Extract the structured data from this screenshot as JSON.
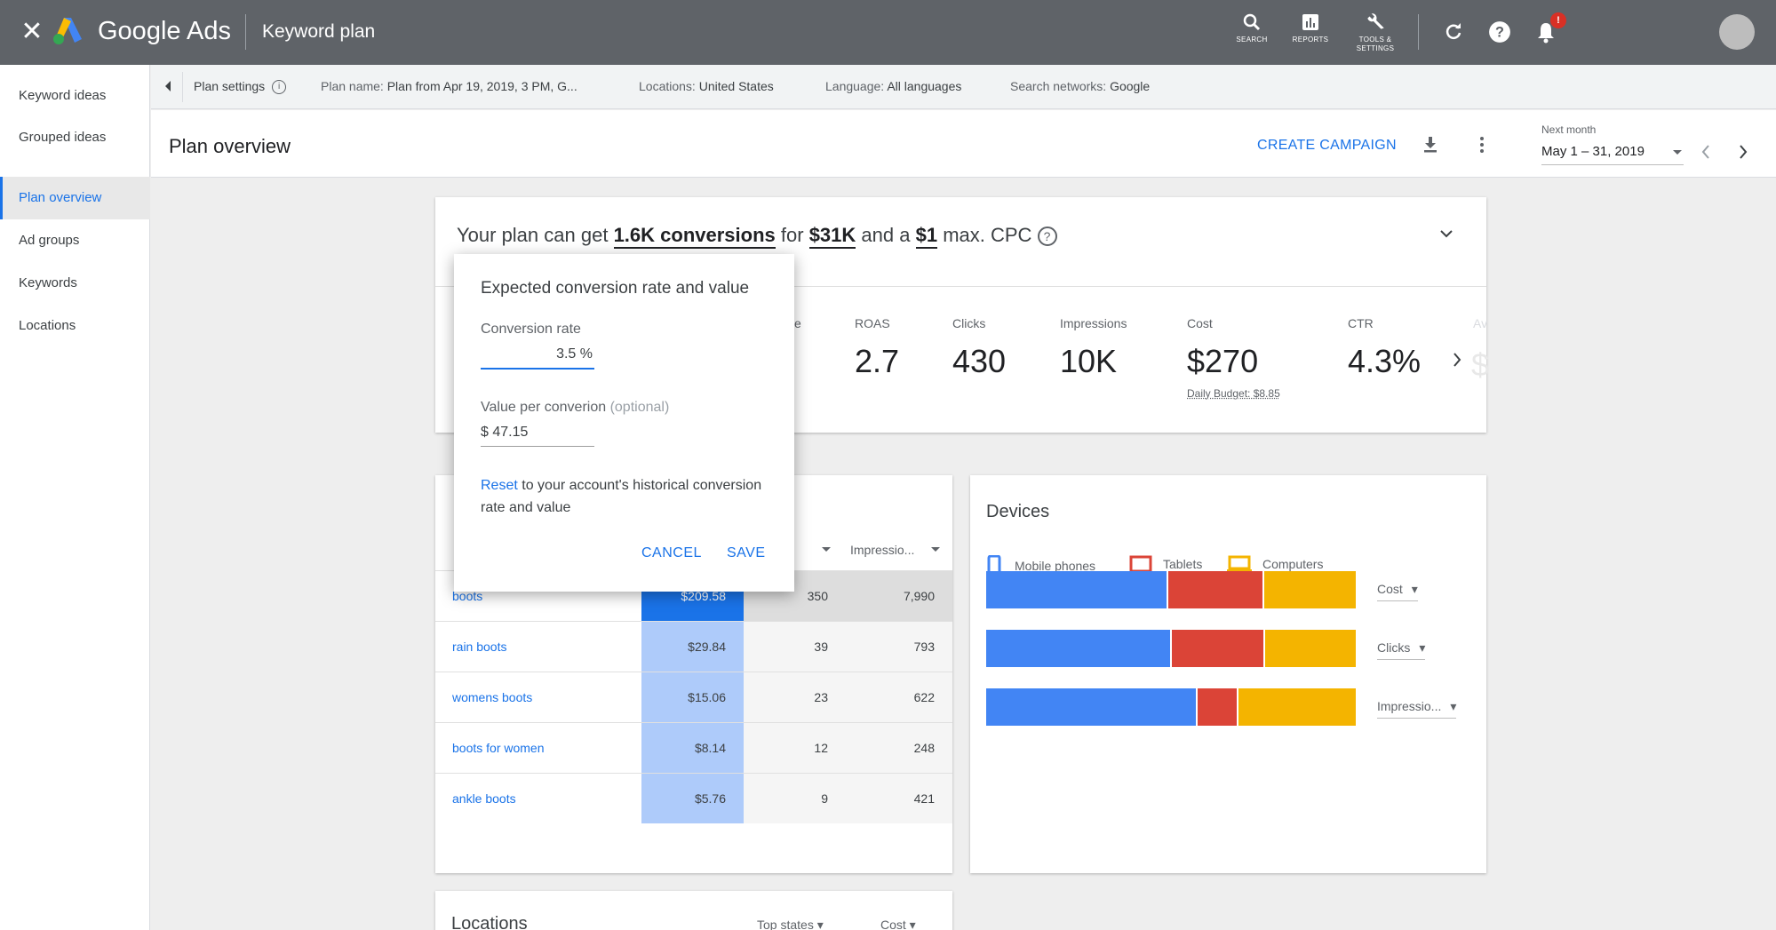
{
  "topbar": {
    "close_glyph": "✕",
    "brand": "Google Ads",
    "page_title": "Keyword plan",
    "tools": [
      {
        "label": "SEARCH",
        "icon": "search-icon"
      },
      {
        "label": "REPORTS",
        "icon": "reports-icon"
      },
      {
        "label": "TOOLS & SETTINGS",
        "icon": "wrench-icon"
      }
    ],
    "notification_badge": "!",
    "colors": {
      "bar": "#5f6368",
      "badge": "#d93025"
    }
  },
  "sidebar": {
    "items": [
      {
        "label": "Keyword ideas"
      },
      {
        "label": "Grouped ideas"
      },
      {
        "label": "Plan overview"
      },
      {
        "label": "Ad groups"
      },
      {
        "label": "Keywords"
      },
      {
        "label": "Locations"
      }
    ],
    "active_label": "Plan overview"
  },
  "settings_bar": {
    "plan_settings": "Plan settings",
    "plan_name_label": "Plan name:",
    "plan_name": "Plan from Apr 19, 2019, 3 PM, G...",
    "locations_label": "Locations:",
    "locations": "United States",
    "language_label": "Language:",
    "language": "All languages",
    "networks_label": "Search networks:",
    "networks": "Google"
  },
  "header": {
    "title": "Plan overview",
    "create_campaign": "CREATE CAMPAIGN",
    "range_label": "Next month",
    "range_value": "May 1 – 31, 2019"
  },
  "summary": {
    "prefix": "Your plan can get",
    "conversions": "1.6K conversions",
    "for": "for",
    "cost": "$31K",
    "and_a": "and a",
    "max_cpc": "$1",
    "suffix": "max. CPC",
    "help_glyph": "?",
    "metrics": [
      {
        "label": "ROAS",
        "value": "2.7"
      },
      {
        "label": "Clicks",
        "value": "430"
      },
      {
        "label": "Impressions",
        "value": "10K"
      },
      {
        "label": "Cost",
        "value": "$270",
        "sub": "Daily Budget: $8.85"
      },
      {
        "label": "CTR",
        "value": "4.3%"
      }
    ],
    "clipped_label": "e",
    "faded_label": "Av",
    "faded_value": "$"
  },
  "popup": {
    "title": "Expected conversion rate and value",
    "rate_label": "Conversion rate",
    "rate_value": "3.5 %",
    "value_label": "Value per converion",
    "value_optional": "(optional)",
    "value_value": "$ 47.15",
    "reset_link": "Reset",
    "reset_text": "to your account's historical conversion rate and value",
    "cancel": "CANCEL",
    "save": "SAVE"
  },
  "keywords_table": {
    "clipped_header": "▾",
    "impressions_header": "Impressio...",
    "rows": [
      {
        "keyword": "boots",
        "cost": "$209.58",
        "clicks": "350",
        "impressions": "7,990",
        "cost_shade": "#1a73e8",
        "clicks_shade": "#dddddd"
      },
      {
        "keyword": "rain boots",
        "cost": "$29.84",
        "clicks": "39",
        "impressions": "793",
        "cost_shade": "#aecbfa",
        "clicks_shade": "#f5f5f5"
      },
      {
        "keyword": "womens boots",
        "cost": "$15.06",
        "clicks": "23",
        "impressions": "622",
        "cost_shade": "#aecbfa",
        "clicks_shade": "#f5f5f5"
      },
      {
        "keyword": "boots for women",
        "cost": "$8.14",
        "clicks": "12",
        "impressions": "248",
        "cost_shade": "#aecbfa",
        "clicks_shade": "#f5f5f5"
      },
      {
        "keyword": "ankle boots",
        "cost": "$5.76",
        "clicks": "9",
        "impressions": "421",
        "cost_shade": "#aecbfa",
        "clicks_shade": "#f5f5f5"
      }
    ]
  },
  "devices": {
    "title": "Devices",
    "legend": [
      {
        "label": "Mobile phones",
        "color": "#4285f4",
        "icon": "phone-icon"
      },
      {
        "label": "Tablets",
        "color": "#db4437",
        "icon": "tablet-icon"
      },
      {
        "label": "Computers",
        "color": "#f4b400",
        "icon": "computer-icon"
      }
    ],
    "bars": [
      {
        "metric": "Cost",
        "shares": [
          0.49,
          0.26,
          0.25
        ]
      },
      {
        "metric": "Clicks",
        "shares": [
          0.5,
          0.25,
          0.25
        ]
      },
      {
        "metric": "Impressio...",
        "shares": [
          0.57,
          0.11,
          0.32
        ]
      }
    ]
  },
  "locations": {
    "title": "Locations",
    "selector_1": "Top states",
    "selector_2": "Cost"
  }
}
